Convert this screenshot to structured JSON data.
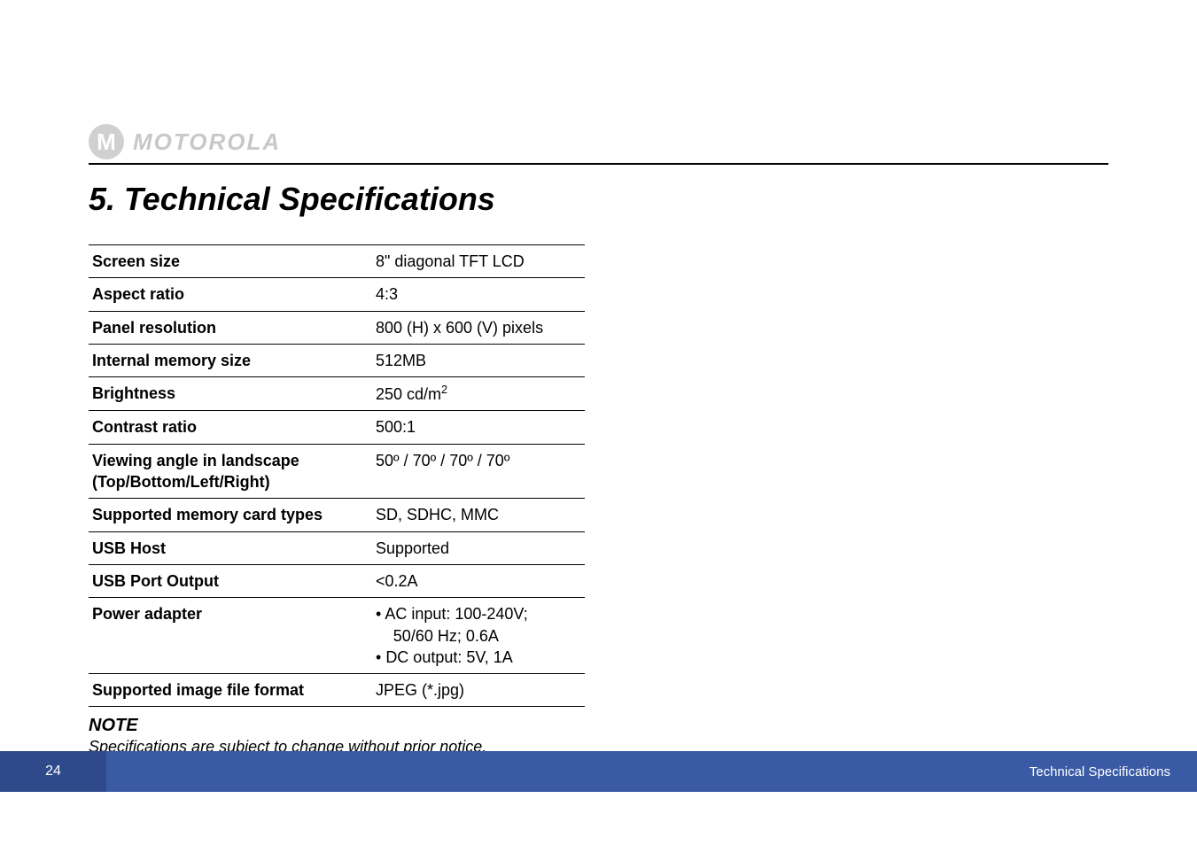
{
  "brand": {
    "logo_letter": "M",
    "wordmark": "MOTOROLA"
  },
  "heading": "5.  Technical Specifications",
  "specs": [
    {
      "label": "Screen size",
      "value_plain": "8\" diagonal TFT LCD"
    },
    {
      "label": "Aspect ratio",
      "value_plain": "4:3"
    },
    {
      "label": "Panel resolution",
      "value_plain": "800 (H) x 600 (V) pixels"
    },
    {
      "label": "Internal memory size",
      "value_plain": "512MB"
    },
    {
      "label": "Brightness",
      "value_base": "250 cd/m",
      "value_sup": "2"
    },
    {
      "label": "Contrast ratio",
      "value_plain": "500:1"
    },
    {
      "label": "Viewing angle in landscape (Top/Bottom/Left/Right)",
      "value_plain": "50º / 70º / 70º / 70º"
    },
    {
      "label": "Supported memory card types",
      "value_plain": "SD, SDHC, MMC"
    },
    {
      "label": "USB Host",
      "value_plain": "Supported"
    },
    {
      "label": "USB Port Output",
      "value_plain": "<0.2A"
    },
    {
      "label": "Power adapter",
      "bullets": [
        {
          "text": "AC input: 100-240V;",
          "indent": false
        },
        {
          "text": "50/60 Hz; 0.6A",
          "indent": true
        },
        {
          "text": "DC output: 5V, 1A",
          "indent": false
        }
      ]
    },
    {
      "label": "Supported image file format",
      "value_plain": "JPEG (*.jpg)"
    }
  ],
  "note": {
    "heading": "NOTE",
    "body": "Specifications are subject to change without prior notice."
  },
  "footer": {
    "page_number": "24",
    "section": "Technical Specifications"
  }
}
